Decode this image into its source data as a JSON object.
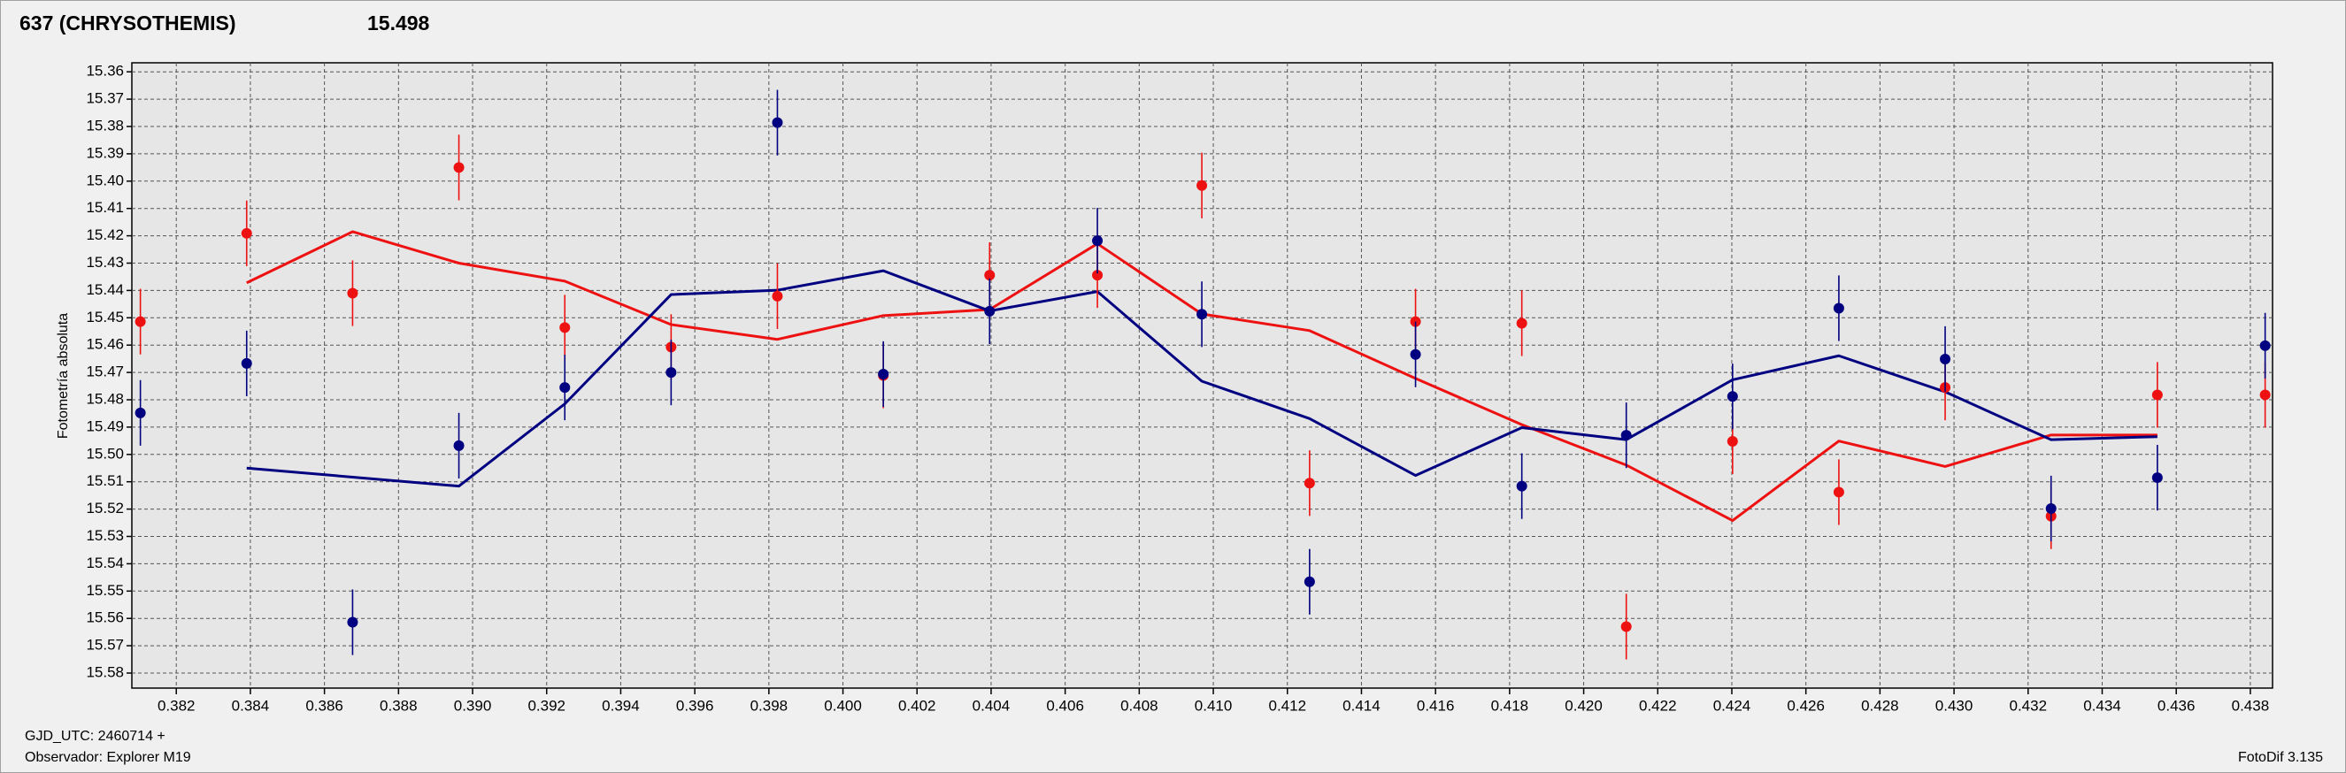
{
  "chart_data": {
    "type": "scatter",
    "title": "637 (CHRYSOTHEMIS)",
    "subtitle": "15.498",
    "title_color": "#ff0000",
    "subtitle_color": "#000080",
    "ylabel": "Fotometría absoluta",
    "xlabel": "GJD_UTC: 2460714 +",
    "observer": "Observador: Explorer M19",
    "software": "FotoDif 3.135",
    "y_inverted": true,
    "grid": true,
    "xlim": [
      0.3808,
      0.4386
    ],
    "ylim": [
      15.3567,
      15.5855
    ],
    "xticks": [
      0.382,
      0.384,
      0.386,
      0.388,
      {
        "value": 0.39,
        "label": "0.390"
      },
      0.392,
      0.394,
      0.396,
      0.398,
      {
        "value": 0.4,
        "label": "0.400"
      },
      0.402,
      0.404,
      0.406,
      0.408,
      {
        "value": 0.41,
        "label": "0.410"
      },
      0.412,
      0.414,
      0.416,
      0.418,
      {
        "value": 0.42,
        "label": "0.420"
      },
      0.422,
      0.424,
      0.426,
      0.428,
      {
        "value": 0.43,
        "label": "0.430"
      },
      0.432,
      0.434,
      0.436,
      0.438
    ],
    "yticks": [
      15.36,
      15.37,
      15.38,
      15.39,
      {
        "value": 15.4,
        "label": "15.40"
      },
      15.41,
      15.42,
      15.43,
      15.44,
      15.45,
      15.46,
      15.47,
      15.48,
      15.49,
      {
        "value": 15.5,
        "label": "15.50"
      },
      15.51,
      15.52,
      15.53,
      15.54,
      15.55,
      15.56,
      15.57,
      15.58
    ],
    "lines": [
      {
        "color": "#ee1111",
        "x": [
          0.3839,
          0.38676,
          0.38963,
          0.39249,
          0.39536,
          0.39823,
          0.40109,
          0.40396,
          0.40687,
          0.40969,
          0.4126,
          0.41546,
          0.41833,
          0.42115,
          0.42402,
          0.42689,
          0.42976,
          0.43262,
          0.43549
        ],
        "values": [
          15.4372,
          15.4185,
          15.43,
          15.4366,
          15.4525,
          15.4579,
          15.4492,
          15.447,
          15.4229,
          15.4486,
          15.4547,
          15.4722,
          15.4891,
          15.5039,
          15.5242,
          15.4951,
          15.5044,
          15.4929,
          15.4929
        ]
      },
      {
        "color": "#000080",
        "x": [
          0.3839,
          0.38676,
          0.38963,
          0.39249,
          0.39536,
          0.39823,
          0.40109,
          0.40396,
          0.40687,
          0.40969,
          0.4126,
          0.41546,
          0.41833,
          0.42115,
          0.42402,
          0.42689,
          0.42976,
          0.43262,
          0.43549
        ],
        "values": [
          15.505,
          15.5083,
          15.5116,
          15.4815,
          15.4415,
          15.4399,
          15.4328,
          15.4475,
          15.4404,
          15.4732,
          15.4869,
          15.5077,
          15.4902,
          15.4946,
          15.4727,
          15.4639,
          15.4771,
          15.4946,
          15.4935
        ]
      }
    ],
    "series": [
      {
        "color": "#ee1111",
        "x": [
          0.38103,
          0.3839,
          0.38676,
          0.38963,
          0.39249,
          0.39536,
          0.39823,
          0.40109,
          0.40396,
          0.40687,
          0.40969,
          0.4126,
          0.41546,
          0.41833,
          0.42115,
          0.42402,
          0.42689,
          0.42976,
          0.43262,
          0.43549,
          0.4384
        ],
        "values": [
          15.4514,
          15.4191,
          15.441,
          15.395,
          15.4536,
          15.4607,
          15.4421,
          15.4711,
          15.4344,
          15.4344,
          15.4016,
          15.5105,
          15.4514,
          15.452,
          15.563,
          15.4952,
          15.5138,
          15.4755,
          15.5226,
          15.4782,
          15.4782
        ],
        "errors": [
          0.012,
          0.012,
          0.012,
          0.012,
          0.012,
          0.012,
          0.012,
          0.012,
          0.012,
          0.012,
          0.012,
          0.012,
          0.012,
          0.012,
          0.012,
          0.012,
          0.012,
          0.012,
          0.012,
          0.012,
          0.012
        ]
      },
      {
        "color": "#000080",
        "x": [
          0.38103,
          0.3839,
          0.38676,
          0.38963,
          0.39249,
          0.39536,
          0.39823,
          0.40109,
          0.40396,
          0.40687,
          0.40969,
          0.4126,
          0.41546,
          0.41833,
          0.42115,
          0.42402,
          0.42689,
          0.42976,
          0.43262,
          0.43549,
          0.4384
        ],
        "values": [
          15.4848,
          15.4667,
          15.5614,
          15.4968,
          15.4755,
          15.47,
          15.3786,
          15.4706,
          15.4476,
          15.4218,
          15.4487,
          15.5466,
          15.4634,
          15.5116,
          15.493,
          15.4788,
          15.4465,
          15.4651,
          15.5198,
          15.5085,
          15.4602
        ],
        "errors": [
          0.012,
          0.012,
          0.012,
          0.012,
          0.012,
          0.012,
          0.012,
          0.012,
          0.012,
          0.012,
          0.012,
          0.012,
          0.012,
          0.012,
          0.012,
          0.012,
          0.012,
          0.012,
          0.012,
          0.012,
          0.012
        ]
      }
    ]
  }
}
